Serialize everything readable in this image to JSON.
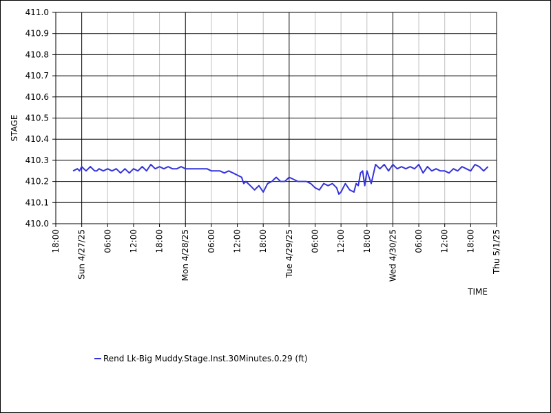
{
  "chart_data": {
    "type": "line",
    "xlabel": "TIME",
    "ylabel": "STAGE",
    "ylim": [
      410.0,
      411.0
    ],
    "ytick_labels": [
      "410.0",
      "410.1",
      "410.2",
      "410.3",
      "410.4",
      "410.5",
      "410.6",
      "410.7",
      "410.8",
      "410.9",
      "411.0"
    ],
    "xlim": [
      "2025-04-26T18:00",
      "2025-05-01T00:00"
    ],
    "xtick_labels": [
      {
        "t": "2025-04-26T18:00",
        "label": "18:00",
        "major": false
      },
      {
        "t": "2025-04-27T00:00",
        "label": "Sun 4/27/25",
        "major": true
      },
      {
        "t": "2025-04-27T06:00",
        "label": "06:00",
        "major": false
      },
      {
        "t": "2025-04-27T12:00",
        "label": "12:00",
        "major": false
      },
      {
        "t": "2025-04-27T18:00",
        "label": "18:00",
        "major": false
      },
      {
        "t": "2025-04-28T00:00",
        "label": "Mon 4/28/25",
        "major": true
      },
      {
        "t": "2025-04-28T06:00",
        "label": "06:00",
        "major": false
      },
      {
        "t": "2025-04-28T12:00",
        "label": "12:00",
        "major": false
      },
      {
        "t": "2025-04-28T18:00",
        "label": "18:00",
        "major": false
      },
      {
        "t": "2025-04-29T00:00",
        "label": "Tue 4/29/25",
        "major": true
      },
      {
        "t": "2025-04-29T06:00",
        "label": "06:00",
        "major": false
      },
      {
        "t": "2025-04-29T12:00",
        "label": "12:00",
        "major": false
      },
      {
        "t": "2025-04-29T18:00",
        "label": "18:00",
        "major": false
      },
      {
        "t": "2025-04-30T00:00",
        "label": "Wed 4/30/25",
        "major": true
      },
      {
        "t": "2025-04-30T06:00",
        "label": "06:00",
        "major": false
      },
      {
        "t": "2025-04-30T12:00",
        "label": "12:00",
        "major": false
      },
      {
        "t": "2025-04-30T18:00",
        "label": "18:00",
        "major": false
      },
      {
        "t": "2025-05-01T00:00",
        "label": "Thu 5/1/25",
        "major": true
      }
    ],
    "grid": true,
    "legend_position": "bottom-left",
    "series": [
      {
        "name": "Rend Lk-Big Muddy.Stage.Inst.30Minutes.0.29 (ft)",
        "color": "#3333dd",
        "x": [
          "2025-04-26T22:00",
          "2025-04-26T23:00",
          "2025-04-26T23:30",
          "2025-04-27T00:00",
          "2025-04-27T01:00",
          "2025-04-27T02:00",
          "2025-04-27T03:00",
          "2025-04-27T03:30",
          "2025-04-27T04:00",
          "2025-04-27T05:00",
          "2025-04-27T06:00",
          "2025-04-27T07:00",
          "2025-04-27T08:00",
          "2025-04-27T09:00",
          "2025-04-27T10:00",
          "2025-04-27T11:00",
          "2025-04-27T12:00",
          "2025-04-27T13:00",
          "2025-04-27T14:00",
          "2025-04-27T15:00",
          "2025-04-27T16:00",
          "2025-04-27T17:00",
          "2025-04-27T18:00",
          "2025-04-27T19:00",
          "2025-04-27T20:00",
          "2025-04-27T21:00",
          "2025-04-27T22:00",
          "2025-04-27T23:00",
          "2025-04-28T00:00",
          "2025-04-28T01:00",
          "2025-04-28T02:00",
          "2025-04-28T03:00",
          "2025-04-28T04:00",
          "2025-04-28T05:00",
          "2025-04-28T06:00",
          "2025-04-28T07:00",
          "2025-04-28T08:00",
          "2025-04-28T09:00",
          "2025-04-28T10:00",
          "2025-04-28T11:00",
          "2025-04-28T12:00",
          "2025-04-28T13:00",
          "2025-04-28T13:30",
          "2025-04-28T14:00",
          "2025-04-28T15:00",
          "2025-04-28T16:00",
          "2025-04-28T17:00",
          "2025-04-28T18:00",
          "2025-04-28T19:00",
          "2025-04-28T20:00",
          "2025-04-28T21:00",
          "2025-04-28T22:00",
          "2025-04-28T23:00",
          "2025-04-29T00:00",
          "2025-04-29T01:00",
          "2025-04-29T02:00",
          "2025-04-29T03:00",
          "2025-04-29T04:00",
          "2025-04-29T05:00",
          "2025-04-29T06:00",
          "2025-04-29T07:00",
          "2025-04-29T08:00",
          "2025-04-29T09:00",
          "2025-04-29T10:00",
          "2025-04-29T11:00",
          "2025-04-29T11:30",
          "2025-04-29T12:00",
          "2025-04-29T13:00",
          "2025-04-29T14:00",
          "2025-04-29T15:00",
          "2025-04-29T15:30",
          "2025-04-29T16:00",
          "2025-04-29T16:30",
          "2025-04-29T17:00",
          "2025-04-29T17:30",
          "2025-04-29T18:00",
          "2025-04-29T19:00",
          "2025-04-29T20:00",
          "2025-04-29T21:00",
          "2025-04-29T22:00",
          "2025-04-29T23:00",
          "2025-04-30T00:00",
          "2025-04-30T01:00",
          "2025-04-30T02:00",
          "2025-04-30T03:00",
          "2025-04-30T04:00",
          "2025-04-30T05:00",
          "2025-04-30T06:00",
          "2025-04-30T07:00",
          "2025-04-30T08:00",
          "2025-04-30T09:00",
          "2025-04-30T10:00",
          "2025-04-30T11:00",
          "2025-04-30T12:00",
          "2025-04-30T13:00",
          "2025-04-30T14:00",
          "2025-04-30T15:00",
          "2025-04-30T16:00",
          "2025-04-30T17:00",
          "2025-04-30T18:00",
          "2025-04-30T19:00",
          "2025-04-30T20:00",
          "2025-04-30T21:00",
          "2025-04-30T22:00"
        ],
        "values": [
          410.25,
          410.26,
          410.25,
          410.27,
          410.25,
          410.27,
          410.25,
          410.25,
          410.26,
          410.25,
          410.26,
          410.25,
          410.26,
          410.24,
          410.26,
          410.24,
          410.26,
          410.25,
          410.27,
          410.25,
          410.28,
          410.26,
          410.27,
          410.26,
          410.27,
          410.26,
          410.26,
          410.27,
          410.26,
          410.26,
          410.26,
          410.26,
          410.26,
          410.26,
          410.25,
          410.25,
          410.25,
          410.24,
          410.25,
          410.24,
          410.23,
          410.22,
          410.19,
          410.2,
          410.18,
          410.16,
          410.18,
          410.15,
          410.19,
          410.2,
          410.22,
          410.2,
          410.2,
          410.22,
          410.21,
          410.2,
          410.2,
          410.2,
          410.19,
          410.17,
          410.16,
          410.19,
          410.18,
          410.19,
          410.17,
          410.14,
          410.15,
          410.19,
          410.16,
          410.15,
          410.19,
          410.18,
          410.24,
          410.25,
          410.18,
          410.25,
          410.19,
          410.28,
          410.26,
          410.28,
          410.25,
          410.28,
          410.26,
          410.27,
          410.26,
          410.27,
          410.26,
          410.28,
          410.24,
          410.27,
          410.25,
          410.26,
          410.25,
          410.25,
          410.24,
          410.26,
          410.25,
          410.27,
          410.26,
          410.25,
          410.28,
          410.27,
          410.25,
          410.27
        ]
      }
    ]
  }
}
